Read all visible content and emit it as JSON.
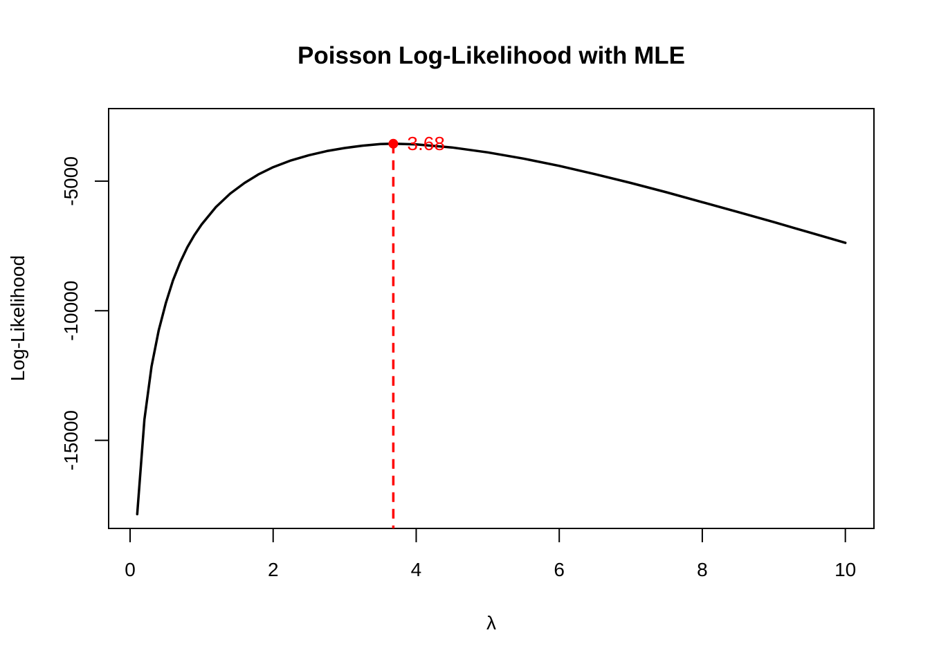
{
  "chart_data": {
    "type": "line",
    "title": "Poisson Log-Likelihood with MLE",
    "xlabel": "λ",
    "ylabel": "Log-Likelihood",
    "xlim": [
      -0.3,
      10.4
    ],
    "ylim": [
      -18400,
      -2200
    ],
    "x_ticks": [
      0,
      2,
      4,
      6,
      8,
      10
    ],
    "x_tick_labels": [
      "0",
      "2",
      "4",
      "6",
      "8",
      "10"
    ],
    "y_ticks": [
      -15000,
      -10000,
      -5000
    ],
    "y_tick_labels": [
      "-15000",
      "-10000",
      "-5000"
    ],
    "grid": false,
    "series": [
      {
        "color": "#000000",
        "x": [
          0.1,
          0.2,
          0.3,
          0.4,
          0.5,
          0.6,
          0.7,
          0.8,
          0.9,
          1.0,
          1.2,
          1.4,
          1.6,
          1.8,
          2.0,
          2.25,
          2.5,
          2.75,
          3.0,
          3.25,
          3.5,
          3.68,
          4.0,
          4.5,
          5.0,
          5.5,
          6.0,
          6.5,
          7.0,
          7.5,
          8.0,
          8.5,
          9.0,
          9.5,
          10.0
        ],
        "y": [
          -17850,
          -14200,
          -12150,
          -10750,
          -9700,
          -8830,
          -8130,
          -7550,
          -7080,
          -6670,
          -6000,
          -5480,
          -5070,
          -4730,
          -4460,
          -4200,
          -4000,
          -3840,
          -3720,
          -3630,
          -3570,
          -3555,
          -3580,
          -3700,
          -3890,
          -4130,
          -4410,
          -4730,
          -5070,
          -5430,
          -5810,
          -6190,
          -6580,
          -6980,
          -7380
        ]
      }
    ],
    "mle": {
      "x": 3.68,
      "y": -3555,
      "label": "3.68",
      "color": "#ff0000"
    }
  }
}
